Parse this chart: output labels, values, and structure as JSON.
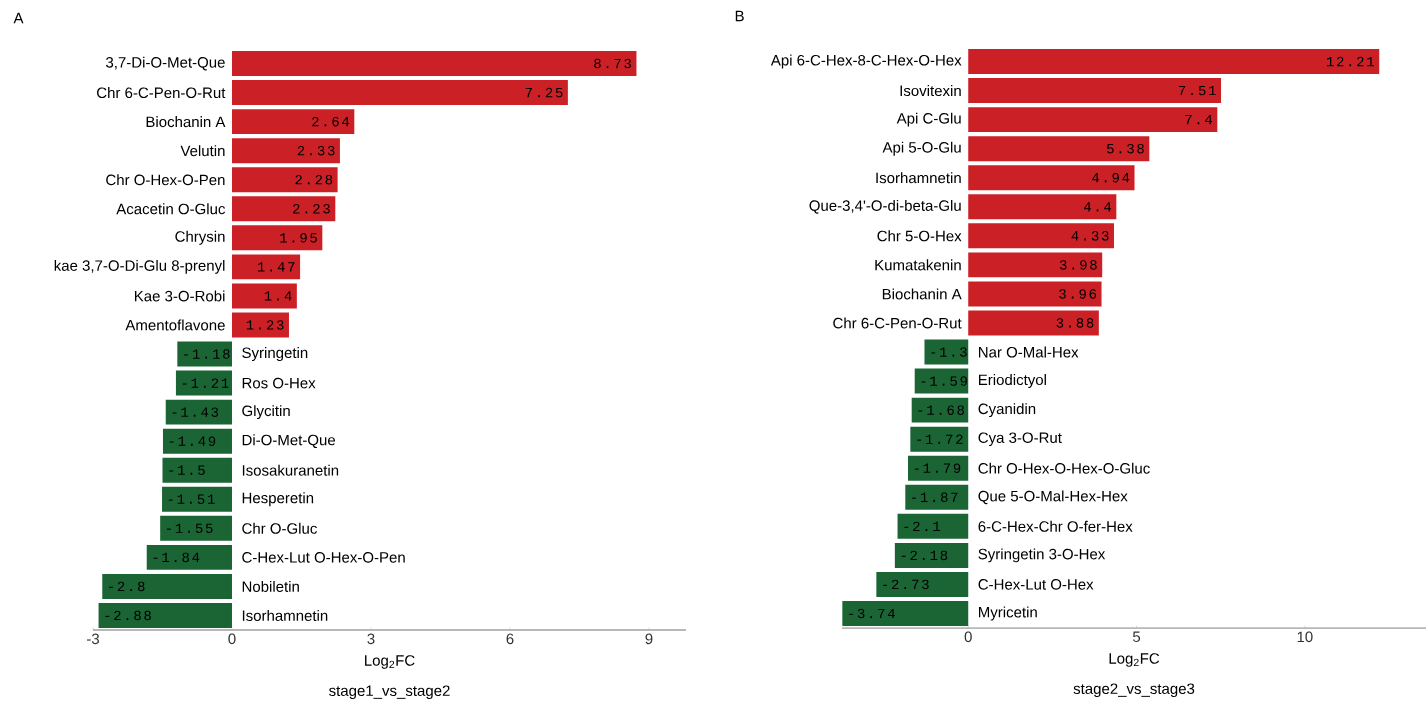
{
  "chart_data": [
    {
      "type": "bar",
      "orientation": "horizontal",
      "title": "A",
      "xlabel": "Log$_{2}$FC",
      "annotations": [
        "stage1_vs_stage2"
      ],
      "categories": [
        "3,7-Di-O-Met-Que",
        "Chr 6-C-Pen-O-Rut",
        "Biochanin A",
        "Velutin",
        "Chr O-Hex-O-Pen",
        "Acacetin O-Gluc",
        "Chrysin",
        "kae 3,7-O-Di-Glu 8-prenyl",
        "Kae 3-O-Robi",
        "Amentoflavone",
        "Syringetin",
        "Ros O-Hex",
        "Glycitin",
        "Di-O-Met-Que",
        "Isosakuranetin",
        "Hesperetin",
        "Chr O-Gluc",
        "C-Hex-Lut O-Hex-O-Pen",
        "Nobiletin",
        "Isorhamnetin"
      ],
      "values": [
        8.73,
        7.25,
        2.64,
        2.33,
        2.28,
        2.23,
        1.95,
        1.47,
        1.4,
        1.23,
        -1.18,
        -1.21,
        -1.43,
        -1.49,
        -1.5,
        -1.51,
        -1.55,
        -1.84,
        -2.8,
        -2.88
      ],
      "colors": [
        "#cc2027",
        "#cc2027",
        "#cc2027",
        "#cc2027",
        "#cc2027",
        "#cc2027",
        "#cc2027",
        "#cc2027",
        "#cc2027",
        "#cc2027",
        "#1b6535",
        "#1b6535",
        "#1b6535",
        "#1b6535",
        "#1b6535",
        "#1b6535",
        "#1b6535",
        "#1b6535",
        "#1b6535",
        "#1b6535"
      ],
      "data_labels": true,
      "xlim": [
        -3,
        9.8
      ],
      "xticks": [
        -3,
        0,
        3,
        6,
        9
      ],
      "grid": false
    },
    {
      "type": "bar",
      "orientation": "horizontal",
      "title": "B",
      "xlabel": "Log$_{2}$FC",
      "annotations": [
        "stage2_vs_stage3"
      ],
      "categories": [
        "Api 6-C-Hex-8-C-Hex-O-Hex",
        "Isovitexin",
        "Api C-Glu",
        "Api 5-O-Glu",
        "Isorhamnetin",
        "Que-3,4'-O-di-beta-Glu",
        "Chr 5-O-Hex",
        "Kumatakenin",
        "Biochanin A",
        "Chr 6-C-Pen-O-Rut",
        "Nar O-Mal-Hex",
        "Eriodictyol",
        "Cyanidin",
        "Cya 3-O-Rut",
        "Chr O-Hex-O-Hex-O-Gluc",
        "Que 5-O-Mal-Hex-Hex",
        "6-C-Hex-Chr O-fer-Hex",
        "Syringetin 3-O-Hex",
        "C-Hex-Lut O-Hex",
        "Myricetin"
      ],
      "values": [
        12.21,
        7.51,
        7.4,
        5.38,
        4.94,
        4.4,
        4.33,
        3.98,
        3.96,
        3.88,
        -1.3,
        -1.59,
        -1.68,
        -1.72,
        -1.79,
        -1.87,
        -2.1,
        -2.18,
        -2.73,
        -3.74
      ],
      "colors": [
        "#cc2027",
        "#cc2027",
        "#cc2027",
        "#cc2027",
        "#cc2027",
        "#cc2027",
        "#cc2027",
        "#cc2027",
        "#cc2027",
        "#cc2027",
        "#1b6535",
        "#1b6535",
        "#1b6535",
        "#1b6535",
        "#1b6535",
        "#1b6535",
        "#1b6535",
        "#1b6535",
        "#1b6535",
        "#1b6535"
      ],
      "data_labels": true,
      "xlim": [
        -3.75,
        13.6
      ],
      "xticks": [
        0,
        5,
        10
      ],
      "grid": false
    }
  ]
}
